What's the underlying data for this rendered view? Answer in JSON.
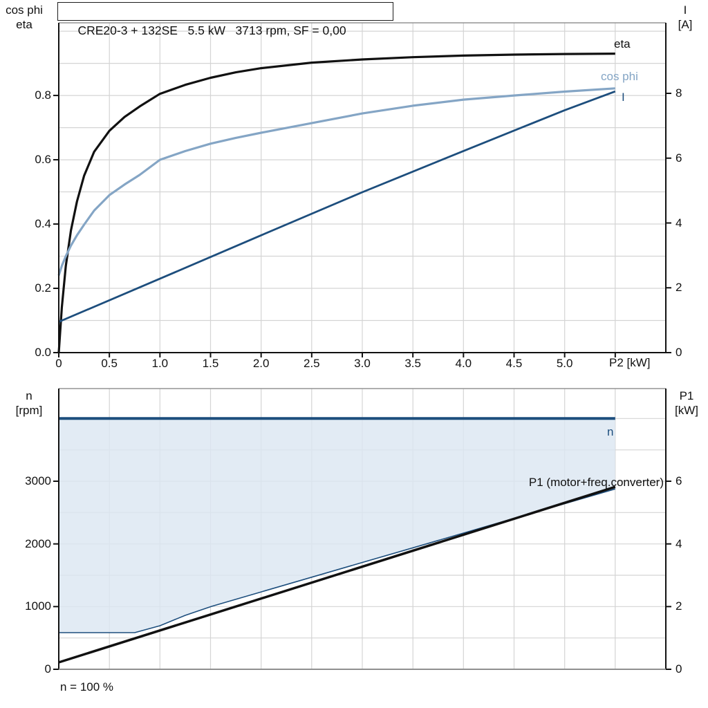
{
  "title": "CRE20-3 + 132SE   5.5 kW   3713 rpm, SF = 0,00",
  "colors": {
    "black": "#111111",
    "dark_blue": "#1d4e7d",
    "light_blue": "#84a5c5",
    "area_fill": "#dce6f1",
    "grid": "#d4d4d4",
    "frame_gray": "#949494"
  },
  "chart_data": [
    {
      "type": "line",
      "title": "CRE20-3 + 132SE   5.5 kW   3713 rpm, SF = 0,00",
      "x_axis": {
        "label": "P2 [kW]",
        "min": 0,
        "max": 6,
        "tick_step": 0.5,
        "n_tick_marks": 12,
        "tick_labels": [
          "0",
          "0.5",
          "1.0",
          "1.5",
          "2.0",
          "2.5",
          "3.0",
          "3.5",
          "4.0",
          "4.5",
          "5.0"
        ]
      },
      "y_left": {
        "label_lines": [
          "cos phi",
          "eta"
        ],
        "min": 0,
        "max": 1.026,
        "grid_step": 0.1,
        "ticks": [
          0,
          0.2,
          0.4,
          0.6,
          0.8
        ],
        "tick_labels": [
          "0.0",
          "0.2",
          "0.4",
          "0.6",
          "0.8"
        ]
      },
      "y_right": {
        "label_lines": [
          "I",
          "[A]"
        ],
        "min": 0,
        "max": 10.176,
        "ticks": [
          0,
          2,
          4,
          6,
          8
        ],
        "tick_labels": [
          "0",
          "2",
          "4",
          "6",
          "8"
        ]
      },
      "grid": true,
      "legend_position": "inline-right",
      "series": [
        {
          "name": "eta",
          "axis": "left",
          "color_key": "black",
          "width": 3.2,
          "x": [
            0,
            0.03,
            0.07,
            0.12,
            0.18,
            0.25,
            0.35,
            0.5,
            0.65,
            0.8,
            1.0,
            1.25,
            1.5,
            1.75,
            2.0,
            2.5,
            3.0,
            3.5,
            4.0,
            4.5,
            5.0,
            5.5
          ],
          "y": [
            0,
            0.14,
            0.27,
            0.38,
            0.47,
            0.55,
            0.625,
            0.69,
            0.733,
            0.766,
            0.805,
            0.833,
            0.855,
            0.872,
            0.885,
            0.902,
            0.912,
            0.919,
            0.924,
            0.927,
            0.929,
            0.93
          ]
        },
        {
          "name": "cos phi",
          "axis": "left",
          "color_key": "light_blue",
          "width": 3.2,
          "x": [
            0,
            0.03,
            0.07,
            0.12,
            0.18,
            0.25,
            0.35,
            0.5,
            0.65,
            0.8,
            1.0,
            1.25,
            1.5,
            1.75,
            2.0,
            2.5,
            3.0,
            3.5,
            4.0,
            4.5,
            5.0,
            5.5
          ],
          "y": [
            0.24,
            0.27,
            0.3,
            0.333,
            0.365,
            0.398,
            0.442,
            0.49,
            0.523,
            0.553,
            0.6,
            0.627,
            0.65,
            0.668,
            0.684,
            0.714,
            0.744,
            0.768,
            0.787,
            0.8,
            0.812,
            0.822
          ]
        },
        {
          "name": "I",
          "axis": "right",
          "color_key": "dark_blue",
          "width": 2.8,
          "x": [
            0,
            1,
            2,
            3,
            4,
            5,
            5.5
          ],
          "y": [
            0.95,
            2.28,
            3.62,
            4.95,
            6.22,
            7.48,
            8.06
          ]
        }
      ]
    },
    {
      "type": "area",
      "x_axis": {
        "label": "",
        "min": 0,
        "max": 6,
        "tick_step": 0.5,
        "n_tick_marks": 0,
        "tick_labels": []
      },
      "y_left": {
        "label_lines": [
          "n",
          "[rpm]"
        ],
        "min": 0,
        "max": 4478,
        "grid_step": 500,
        "ticks": [
          0,
          1000,
          2000,
          3000
        ],
        "tick_labels": [
          "0",
          "1000",
          "2000",
          "3000"
        ]
      },
      "y_right": {
        "label_lines": [
          "P1",
          "[kW]"
        ],
        "min": 0,
        "max": 8.956,
        "grid_step": 1000,
        "ticks": [
          0,
          2,
          4,
          6
        ],
        "tick_labels": [
          "0",
          "2",
          "4",
          "6"
        ]
      },
      "grid": true,
      "footnote": "n = 100 %",
      "area_fill_between": [
        "n",
        "speed range lower bound"
      ],
      "series": [
        {
          "name": "n",
          "axis": "left",
          "color_key": "dark_blue",
          "width": 4,
          "x": [
            0,
            5.5
          ],
          "y": [
            4000,
            4000
          ]
        },
        {
          "name": "speed range lower bound",
          "axis": "left",
          "color_key": "dark_blue",
          "width": 1.6,
          "x": [
            0,
            0.75,
            1.0,
            1.25,
            1.51,
            2.0,
            2.5,
            3.0,
            3.5,
            4.0,
            4.5,
            5.0,
            5.5
          ],
          "y": [
            585,
            585,
            695,
            860,
            1004,
            1234,
            1469,
            1704,
            1938,
            2173,
            2408,
            2642,
            2877
          ]
        },
        {
          "name": "P1 (motor+freq.converter)",
          "axis": "right",
          "color_key": "black",
          "width": 3.5,
          "x": [
            0,
            5.5
          ],
          "y": [
            0.22,
            5.82
          ]
        }
      ]
    }
  ]
}
